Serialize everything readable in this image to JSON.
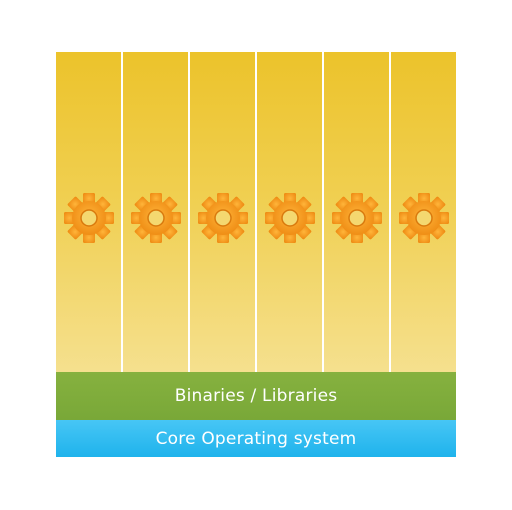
{
  "diagram": {
    "columns": [
      {
        "icon": "gear-icon"
      },
      {
        "icon": "gear-icon"
      },
      {
        "icon": "gear-icon"
      },
      {
        "icon": "gear-icon"
      },
      {
        "icon": "gear-icon"
      },
      {
        "icon": "gear-icon"
      }
    ],
    "layers": {
      "binaries_label": "Binaries / Libraries",
      "os_label": "Core Operating system"
    },
    "colors": {
      "column": "#f0cf50",
      "gear": "#f39c1a",
      "binaries": "#7fac3b",
      "os": "#2bb9ef"
    }
  }
}
